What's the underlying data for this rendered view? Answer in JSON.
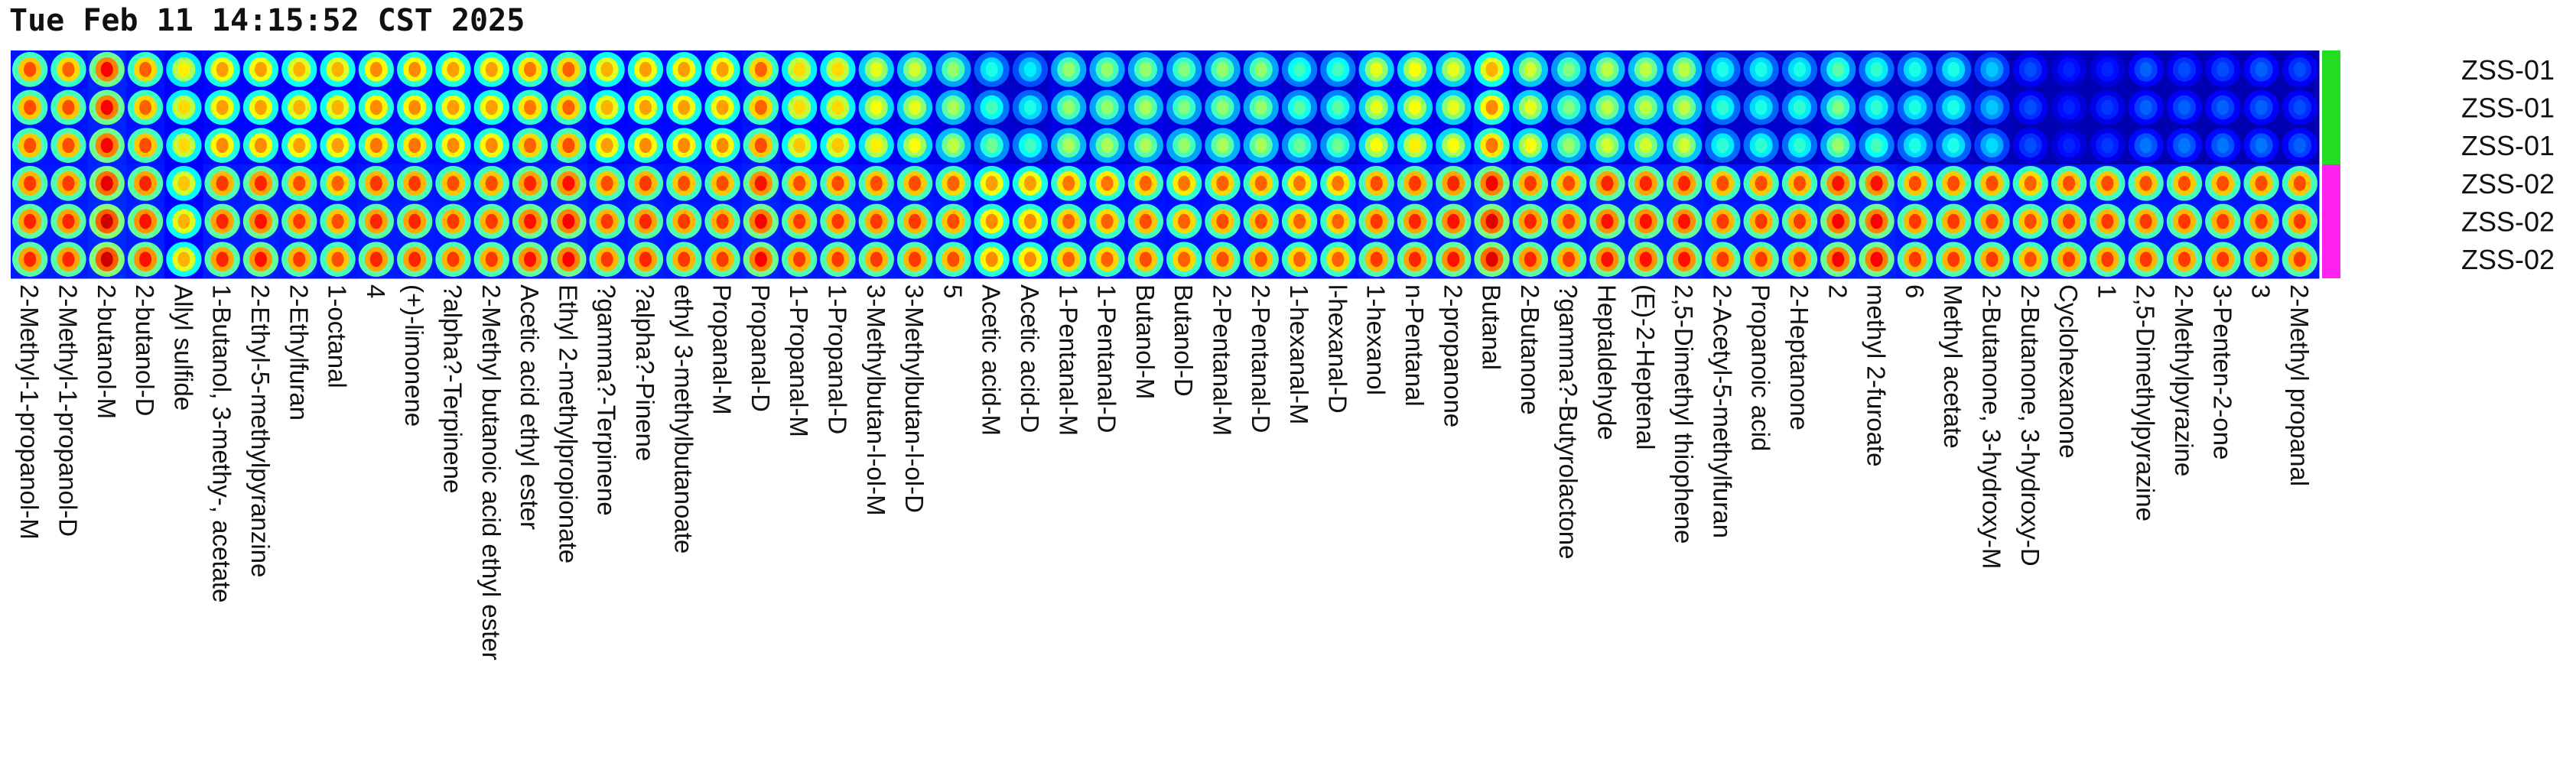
{
  "timestamp": "Tue Feb 11 14:15:52 CST 2025",
  "chart_data": {
    "type": "heatmap",
    "title": "",
    "xlabel": "",
    "ylabel": "",
    "colormap": "jet",
    "grid": false,
    "x_labels": [
      "2-Methyl-1-propanol-M",
      "2-Methyl-1-propanol-D",
      "2-butanol-M",
      "2-butanol-D",
      "Allyl sulfide",
      "1-Butanol, 3-methy-, acetate",
      "2-Ethyl-5-methylpyranzine",
      "2-Ethylfuran",
      "1-octanal",
      "4",
      "(+)-limonene",
      "?alpha?-Terpinene",
      "2-Methyl butanoic acid ethyl ester",
      "Acetic acid ethyl ester",
      "Ethyl 2-methylpropionate",
      "?gamma?-Terpinene",
      "?alpha?-Pinene",
      "ethyl 3-methylbutanoate",
      "Propanal-M",
      "Propanal-D",
      "1-Propanal-M",
      "1-Propanal-D",
      "3-Methylbutan-l-ol-M",
      "3-Methylbutan-l-ol-D",
      "5",
      "Acetic acid-M",
      "Acetic acid-D",
      "1-Pentanal-M",
      "1-Pentanal-D",
      "Butanol-M",
      "Butanol-D",
      "2-Pentanal-M",
      "2-Pentanal-D",
      "1-hexanal-M",
      "l-hexanal-D",
      "1-hexanol",
      "n-Pentanal",
      "2-propanone",
      "Butanal",
      "2-Butanone",
      "?gamma?-Butyrolactone",
      "Heptaldehyde",
      "(E)-2-Heptenal",
      "2,5-Dimethyl thiophene",
      "2-Acetyl-5-methylfuran",
      "Propanoic acid",
      "2-Heptanone",
      "2",
      "methyl 2-furoate",
      "6",
      "Methyl acetate",
      "2-Butanone, 3-hydroxy-M",
      "2-Butanone, 3-hydroxy-D",
      "Cyclohexanone",
      "1",
      "2,5-Dimethylpyrazine",
      "2-Methylpyrazine",
      "3-Penten-2-one",
      "3",
      "2-Methyl propanal"
    ],
    "y_labels": [
      "ZSS-01",
      "ZSS-01",
      "ZSS-01",
      "ZSS-02",
      "ZSS-02",
      "ZSS-02"
    ],
    "groups": [
      {
        "name": "ZSS-01",
        "color": "#22dd22"
      },
      {
        "name": "ZSS-02",
        "color": "#ff22ee"
      }
    ],
    "values": [
      [
        0.8,
        0.78,
        0.88,
        0.78,
        0.64,
        0.72,
        0.72,
        0.7,
        0.7,
        0.74,
        0.74,
        0.72,
        0.72,
        0.76,
        0.78,
        0.7,
        0.72,
        0.72,
        0.72,
        0.78,
        0.66,
        0.66,
        0.6,
        0.58,
        0.52,
        0.4,
        0.36,
        0.52,
        0.52,
        0.52,
        0.5,
        0.52,
        0.52,
        0.44,
        0.44,
        0.6,
        0.62,
        0.6,
        0.7,
        0.58,
        0.5,
        0.56,
        0.56,
        0.56,
        0.4,
        0.4,
        0.4,
        0.46,
        0.42,
        0.4,
        0.4,
        0.32,
        0.2,
        0.16,
        0.16,
        0.22,
        0.2,
        0.2,
        0.22,
        0.2
      ],
      [
        0.8,
        0.8,
        0.88,
        0.78,
        0.66,
        0.72,
        0.72,
        0.7,
        0.7,
        0.74,
        0.74,
        0.72,
        0.72,
        0.76,
        0.78,
        0.7,
        0.72,
        0.72,
        0.72,
        0.78,
        0.66,
        0.66,
        0.62,
        0.6,
        0.54,
        0.44,
        0.4,
        0.52,
        0.52,
        0.54,
        0.5,
        0.52,
        0.52,
        0.46,
        0.46,
        0.6,
        0.62,
        0.6,
        0.74,
        0.6,
        0.5,
        0.56,
        0.56,
        0.56,
        0.42,
        0.4,
        0.42,
        0.5,
        0.42,
        0.4,
        0.4,
        0.32,
        0.2,
        0.16,
        0.18,
        0.22,
        0.22,
        0.22,
        0.22,
        0.2
      ],
      [
        0.8,
        0.8,
        0.88,
        0.8,
        0.66,
        0.74,
        0.74,
        0.72,
        0.72,
        0.76,
        0.76,
        0.74,
        0.74,
        0.78,
        0.8,
        0.72,
        0.74,
        0.74,
        0.74,
        0.8,
        0.68,
        0.68,
        0.64,
        0.62,
        0.56,
        0.48,
        0.44,
        0.54,
        0.54,
        0.54,
        0.52,
        0.54,
        0.54,
        0.48,
        0.48,
        0.62,
        0.64,
        0.62,
        0.76,
        0.62,
        0.52,
        0.58,
        0.58,
        0.58,
        0.42,
        0.42,
        0.42,
        0.52,
        0.44,
        0.4,
        0.4,
        0.34,
        0.2,
        0.16,
        0.18,
        0.24,
        0.24,
        0.24,
        0.24,
        0.22
      ],
      [
        0.82,
        0.82,
        0.9,
        0.84,
        0.68,
        0.82,
        0.84,
        0.8,
        0.78,
        0.82,
        0.82,
        0.8,
        0.8,
        0.84,
        0.86,
        0.8,
        0.82,
        0.8,
        0.8,
        0.86,
        0.8,
        0.8,
        0.8,
        0.8,
        0.78,
        0.72,
        0.72,
        0.76,
        0.76,
        0.78,
        0.76,
        0.78,
        0.78,
        0.76,
        0.76,
        0.8,
        0.82,
        0.84,
        0.88,
        0.82,
        0.8,
        0.84,
        0.84,
        0.84,
        0.8,
        0.8,
        0.8,
        0.86,
        0.86,
        0.8,
        0.8,
        0.8,
        0.78,
        0.8,
        0.8,
        0.8,
        0.8,
        0.8,
        0.8,
        0.8
      ],
      [
        0.84,
        0.84,
        0.92,
        0.86,
        0.7,
        0.84,
        0.86,
        0.82,
        0.8,
        0.84,
        0.84,
        0.82,
        0.82,
        0.86,
        0.88,
        0.82,
        0.84,
        0.82,
        0.82,
        0.88,
        0.82,
        0.82,
        0.82,
        0.82,
        0.8,
        0.74,
        0.74,
        0.78,
        0.78,
        0.8,
        0.78,
        0.8,
        0.8,
        0.78,
        0.78,
        0.82,
        0.84,
        0.86,
        0.9,
        0.84,
        0.82,
        0.86,
        0.86,
        0.86,
        0.82,
        0.82,
        0.82,
        0.88,
        0.88,
        0.82,
        0.82,
        0.82,
        0.8,
        0.82,
        0.82,
        0.82,
        0.82,
        0.82,
        0.82,
        0.82
      ],
      [
        0.84,
        0.84,
        0.92,
        0.86,
        0.7,
        0.84,
        0.86,
        0.82,
        0.8,
        0.84,
        0.84,
        0.82,
        0.82,
        0.86,
        0.88,
        0.82,
        0.84,
        0.82,
        0.82,
        0.88,
        0.82,
        0.82,
        0.82,
        0.82,
        0.8,
        0.74,
        0.74,
        0.78,
        0.78,
        0.8,
        0.78,
        0.8,
        0.8,
        0.78,
        0.78,
        0.82,
        0.84,
        0.86,
        0.9,
        0.84,
        0.82,
        0.86,
        0.86,
        0.86,
        0.82,
        0.82,
        0.82,
        0.88,
        0.88,
        0.82,
        0.82,
        0.82,
        0.8,
        0.82,
        0.82,
        0.82,
        0.82,
        0.82,
        0.82,
        0.82
      ]
    ]
  }
}
